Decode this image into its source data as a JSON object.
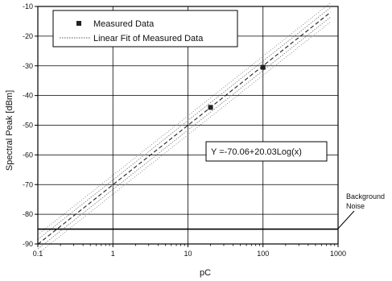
{
  "chart_data": {
    "type": "scatter",
    "xlabel": "pC",
    "ylabel": "Spectral Peak [dBm]",
    "xscale": "log",
    "xlim": [
      0.1,
      1000
    ],
    "ylim": [
      -90,
      -10
    ],
    "x_ticks": [
      "0.1",
      "1",
      "10",
      "100",
      "1000"
    ],
    "y_ticks": [
      "-10",
      "-20",
      "-30",
      "-40",
      "-50",
      "-60",
      "-70",
      "-80",
      "-90"
    ],
    "grid": true,
    "legend_position": "top-left",
    "series": [
      {
        "name": "Measured Data",
        "kind": "points",
        "x": [
          20,
          100
        ],
        "y": [
          -44,
          -30.5
        ]
      },
      {
        "name": "Linear Fit of Measured Data",
        "kind": "line",
        "intercept": -70.06,
        "slope": 20.03
      }
    ],
    "equation_label": "Y =-70.06+20.03Log(x)",
    "background_noise": {
      "y": -85,
      "label_line1": "Background",
      "label_line2": "Noise"
    }
  }
}
